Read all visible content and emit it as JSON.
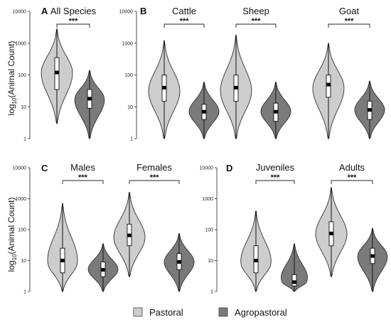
{
  "colors": {
    "pastoral": "#cdcdcd",
    "agropastoral": "#7a7a7a"
  },
  "legend": [
    {
      "label": "Pastoral",
      "color": "#cdcdcd"
    },
    {
      "label": "Agropastoral",
      "color": "#7a7a7a"
    }
  ],
  "ylabel": {
    "main": "log",
    "sub": "10",
    "rest": "(Animal Count)"
  },
  "chart_data": [
    {
      "panel": "A",
      "type": "violin",
      "yscale": "log",
      "ylim": [
        1,
        10000
      ],
      "yticks": [
        "1",
        "10",
        "100",
        "1000",
        "10000"
      ],
      "groups": [
        {
          "title": "All Species",
          "significance": "***",
          "series": [
            {
              "name": "Pastoral",
              "min": 3,
              "q1": 35,
              "median": 120,
              "q3": 350,
              "max": 2800,
              "mode": 120
            },
            {
              "name": "Agropastoral",
              "min": 1,
              "q1": 9,
              "median": 18,
              "q3": 35,
              "max": 140,
              "mode": 18
            }
          ]
        }
      ]
    },
    {
      "panel": "B",
      "type": "violin",
      "yscale": "log",
      "ylim": [
        1,
        10000
      ],
      "yticks": [
        "1",
        "10",
        "100",
        "1000",
        "10000"
      ],
      "groups": [
        {
          "title": "Cattle",
          "significance": "***",
          "series": [
            {
              "name": "Pastoral",
              "min": 1,
              "q1": 15,
              "median": 40,
              "q3": 100,
              "max": 1200,
              "mode": 30
            },
            {
              "name": "Agropastoral",
              "min": 1,
              "q1": 4,
              "median": 7,
              "q3": 12,
              "max": 60,
              "mode": 7
            }
          ]
        },
        {
          "title": "Sheep",
          "significance": "***",
          "series": [
            {
              "name": "Pastoral",
              "min": 1,
              "q1": 15,
              "median": 40,
              "q3": 100,
              "max": 1800,
              "mode": 30
            },
            {
              "name": "Agropastoral",
              "min": 1,
              "q1": 3.5,
              "median": 7,
              "q3": 13,
              "max": 60,
              "mode": 7
            }
          ]
        },
        {
          "title": "Goat",
          "significance": "***",
          "series": [
            {
              "name": "Pastoral",
              "min": 1,
              "q1": 20,
              "median": 50,
              "q3": 100,
              "max": 1000,
              "mode": 40
            },
            {
              "name": "Agropastoral",
              "min": 1,
              "q1": 4,
              "median": 8,
              "q3": 15,
              "max": 65,
              "mode": 8
            }
          ]
        }
      ]
    },
    {
      "panel": "C",
      "type": "violin",
      "yscale": "log",
      "ylim": [
        1,
        10000
      ],
      "yticks": [
        "1",
        "10",
        "100",
        "1000",
        "10000"
      ],
      "groups": [
        {
          "title": "Males",
          "significance": "***",
          "series": [
            {
              "name": "Pastoral",
              "min": 1,
              "q1": 4,
              "median": 10,
              "q3": 25,
              "max": 700,
              "mode": 8
            },
            {
              "name": "Agropastoral",
              "min": 1,
              "q1": 3,
              "median": 5,
              "q3": 9,
              "max": 35,
              "mode": 5
            }
          ]
        },
        {
          "title": "Females",
          "significance": "***",
          "series": [
            {
              "name": "Pastoral",
              "min": 3,
              "q1": 30,
              "median": 65,
              "q3": 150,
              "max": 1600,
              "mode": 55
            },
            {
              "name": "Agropastoral",
              "min": 1,
              "q1": 5,
              "median": 9,
              "q3": 17,
              "max": 75,
              "mode": 9
            }
          ]
        }
      ]
    },
    {
      "panel": "D",
      "type": "violin",
      "yscale": "log",
      "ylim": [
        1,
        10000
      ],
      "yticks": [
        "1",
        "10",
        "100",
        "1000",
        "10000"
      ],
      "groups": [
        {
          "title": "Juveniles",
          "significance": "***",
          "series": [
            {
              "name": "Pastoral",
              "min": 1,
              "q1": 4,
              "median": 10,
              "q3": 30,
              "max": 400,
              "mode": 8
            },
            {
              "name": "Agropastoral",
              "min": 1,
              "q1": 1.5,
              "median": 2,
              "q3": 3.5,
              "max": 35,
              "mode": 2
            }
          ]
        },
        {
          "title": "Adults",
          "significance": "***",
          "series": [
            {
              "name": "Pastoral",
              "min": 3,
              "q1": 30,
              "median": 75,
              "q3": 180,
              "max": 2300,
              "mode": 70
            },
            {
              "name": "Agropastoral",
              "min": 1,
              "q1": 8,
              "median": 14,
              "q3": 25,
              "max": 110,
              "mode": 14
            }
          ]
        }
      ]
    }
  ]
}
